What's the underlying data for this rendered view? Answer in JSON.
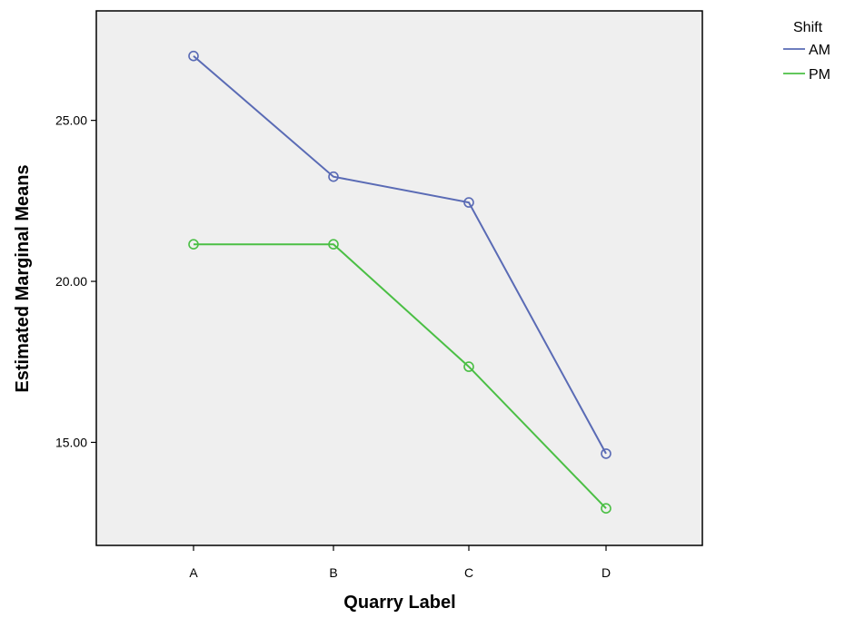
{
  "chart_data": {
    "type": "line",
    "title": "",
    "xlabel": "Quarry Label",
    "ylabel": "Estimated Marginal Means",
    "categories": [
      "A",
      "B",
      "C",
      "D"
    ],
    "ylim": [
      11.8,
      28.4
    ],
    "yticks": [
      15.0,
      20.0,
      25.0
    ],
    "ytick_labels": [
      "15.00",
      "20.00",
      "25.00"
    ],
    "grid": false,
    "legend_position": "top-right, outside plot",
    "legend_title": "Shift",
    "series": [
      {
        "name": "AM",
        "values": [
          27.0,
          23.25,
          22.45,
          14.65
        ],
        "color": "#5a6bb5"
      },
      {
        "name": "PM",
        "values": [
          21.15,
          21.15,
          17.35,
          12.95
        ],
        "color": "#4bbf45"
      }
    ],
    "marker": "open-circle",
    "plot_background": "#efefef"
  }
}
